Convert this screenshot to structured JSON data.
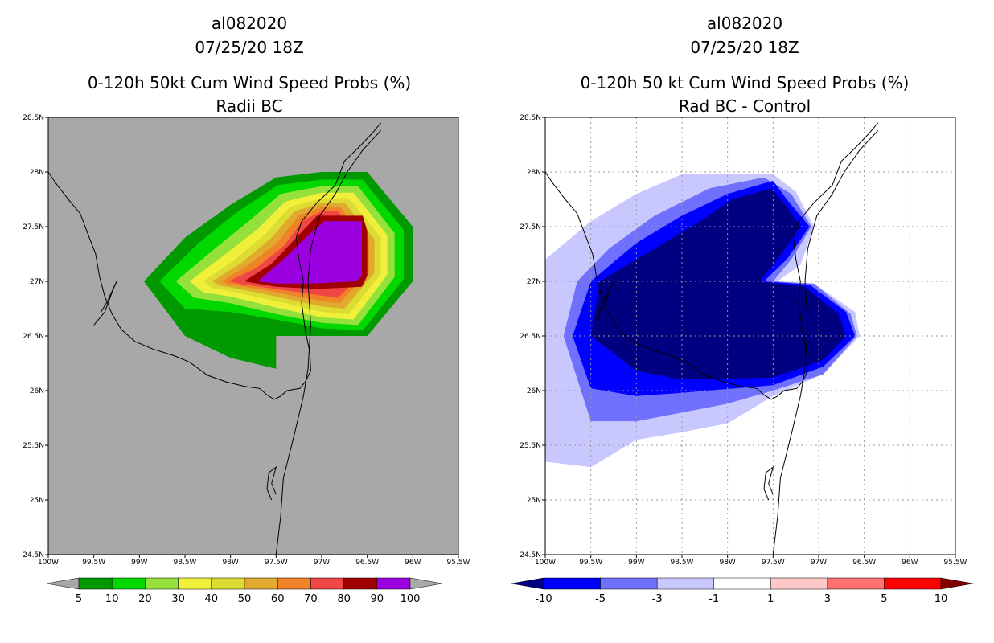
{
  "chart_data": [
    {
      "type": "heatmap",
      "id": "left",
      "title_lines": [
        "al082020",
        "07/25/20 18Z",
        "0-120h 50kt Cum Wind Speed Probs (%)",
        "Radii BC"
      ],
      "xlim": [
        -100,
        -95.5
      ],
      "ylim": [
        24.5,
        28.5
      ],
      "x_ticks": [
        {
          "v": -100,
          "label": "100W"
        },
        {
          "v": -99.5,
          "label": "99.5W"
        },
        {
          "v": -99,
          "label": "99W"
        },
        {
          "v": -98.5,
          "label": "98.5W"
        },
        {
          "v": -98,
          "label": "98W"
        },
        {
          "v": -97.5,
          "label": "97.5W"
        },
        {
          "v": -97,
          "label": "97W"
        },
        {
          "v": -96.5,
          "label": "96.5W"
        },
        {
          "v": -96,
          "label": "96W"
        },
        {
          "v": -95.5,
          "label": "95.5W"
        }
      ],
      "y_ticks": [
        {
          "v": 24.5,
          "label": "24.5N"
        },
        {
          "v": 25,
          "label": "25N"
        },
        {
          "v": 25.5,
          "label": "25.5N"
        },
        {
          "v": 26,
          "label": "26N"
        },
        {
          "v": 26.5,
          "label": "26.5N"
        },
        {
          "v": 27,
          "label": "27N"
        },
        {
          "v": 27.5,
          "label": "27.5N"
        },
        {
          "v": 28,
          "label": "28N"
        },
        {
          "v": 28.5,
          "label": "28.5N"
        }
      ],
      "background": "#a8a8a8",
      "grid": false,
      "colorbar": {
        "labels": [
          "5",
          "10",
          "20",
          "30",
          "40",
          "50",
          "60",
          "70",
          "80",
          "90",
          "100"
        ],
        "colors": [
          "#009a00",
          "#00d800",
          "#96e03c",
          "#f0f03a",
          "#dcdc32",
          "#e0aa2e",
          "#f08228",
          "#f04646",
          "#a00000",
          "#9a00e0"
        ],
        "end_color_low": "#a8a8a8",
        "end_color_high": "#a8a8a8"
      },
      "levels": [
        {
          "value": 5,
          "color": "#009a00",
          "polygon": [
            [
              -98.95,
              27
            ],
            [
              -98.5,
              27.4
            ],
            [
              -98,
              27.7
            ],
            [
              -97.5,
              27.95
            ],
            [
              -97,
              28
            ],
            [
              -96.5,
              28
            ],
            [
              -96,
              27.5
            ],
            [
              -96,
              27
            ],
            [
              -96.5,
              26.5
            ],
            [
              -97,
              26.5
            ],
            [
              -97.5,
              26.5
            ],
            [
              -97.5,
              26.2
            ],
            [
              -98,
              26.3
            ],
            [
              -98.5,
              26.5
            ]
          ]
        },
        {
          "value": 10,
          "color": "#00d800",
          "polygon": [
            [
              -98.78,
              27
            ],
            [
              -98.35,
              27.35
            ],
            [
              -97.95,
              27.62
            ],
            [
              -97.48,
              27.88
            ],
            [
              -97,
              27.93
            ],
            [
              -96.55,
              27.93
            ],
            [
              -96.1,
              27.47
            ],
            [
              -96.1,
              27.02
            ],
            [
              -96.55,
              26.55
            ],
            [
              -97,
              26.57
            ],
            [
              -97.5,
              26.65
            ],
            [
              -98,
              26.72
            ],
            [
              -98.5,
              26.75
            ]
          ]
        },
        {
          "value": 20,
          "color": "#96e03c",
          "polygon": [
            [
              -98.6,
              27
            ],
            [
              -98.2,
              27.28
            ],
            [
              -97.8,
              27.55
            ],
            [
              -97.45,
              27.8
            ],
            [
              -97,
              27.87
            ],
            [
              -96.6,
              27.87
            ],
            [
              -96.2,
              27.44
            ],
            [
              -96.2,
              27.04
            ],
            [
              -96.6,
              26.6
            ],
            [
              -97,
              26.62
            ],
            [
              -97.5,
              26.7
            ],
            [
              -98,
              26.8
            ],
            [
              -98.4,
              26.85
            ]
          ]
        },
        {
          "value": 30,
          "color": "#f0f03a",
          "polygon": [
            [
              -98.45,
              27
            ],
            [
              -98.1,
              27.22
            ],
            [
              -97.7,
              27.48
            ],
            [
              -97.4,
              27.73
            ],
            [
              -97,
              27.81
            ],
            [
              -96.65,
              27.81
            ],
            [
              -96.28,
              27.42
            ],
            [
              -96.28,
              27.06
            ],
            [
              -96.65,
              26.65
            ],
            [
              -97,
              26.67
            ],
            [
              -97.5,
              26.76
            ],
            [
              -98,
              26.86
            ],
            [
              -98.3,
              26.9
            ]
          ]
        },
        {
          "value": 40,
          "color": "#dcdc32",
          "polygon": [
            [
              -98.3,
              27
            ],
            [
              -97.98,
              27.18
            ],
            [
              -97.62,
              27.43
            ],
            [
              -97.35,
              27.68
            ],
            [
              -97,
              27.76
            ],
            [
              -96.7,
              27.76
            ],
            [
              -96.35,
              27.4
            ],
            [
              -96.35,
              27.07
            ],
            [
              -96.7,
              26.7
            ],
            [
              -97,
              26.72
            ],
            [
              -97.5,
              26.82
            ],
            [
              -97.95,
              26.9
            ],
            [
              -98.2,
              26.94
            ]
          ]
        },
        {
          "value": 50,
          "color": "#e0aa2e",
          "polygon": [
            [
              -98.2,
              27
            ],
            [
              -97.88,
              27.17
            ],
            [
              -97.55,
              27.4
            ],
            [
              -97.3,
              27.64
            ],
            [
              -97,
              27.72
            ],
            [
              -96.75,
              27.72
            ],
            [
              -96.42,
              27.38
            ],
            [
              -96.42,
              27.08
            ],
            [
              -96.75,
              26.75
            ],
            [
              -97,
              26.77
            ],
            [
              -97.5,
              26.86
            ],
            [
              -97.9,
              26.93
            ],
            [
              -98.12,
              26.96
            ]
          ]
        },
        {
          "value": 60,
          "color": "#f08228",
          "polygon": [
            [
              -98.1,
              27
            ],
            [
              -97.8,
              27.15
            ],
            [
              -97.48,
              27.36
            ],
            [
              -97.25,
              27.6
            ],
            [
              -97,
              27.68
            ],
            [
              -96.8,
              27.68
            ],
            [
              -96.48,
              27.36
            ],
            [
              -96.48,
              27.1
            ],
            [
              -96.8,
              26.8
            ],
            [
              -97,
              26.82
            ],
            [
              -97.5,
              26.9
            ],
            [
              -97.85,
              26.95
            ],
            [
              -98.05,
              26.98
            ]
          ]
        },
        {
          "value": 70,
          "color": "#f04646",
          "polygon": [
            [
              -98.02,
              27
            ],
            [
              -97.72,
              27.12
            ],
            [
              -97.42,
              27.32
            ],
            [
              -97.2,
              27.56
            ],
            [
              -97,
              27.64
            ],
            [
              -96.82,
              27.64
            ],
            [
              -96.52,
              27.34
            ],
            [
              -96.52,
              27.1
            ],
            [
              -96.82,
              26.85
            ],
            [
              -97,
              26.87
            ],
            [
              -97.5,
              26.93
            ],
            [
              -97.85,
              26.97
            ]
          ]
        },
        {
          "value": 80,
          "color": "#a00000",
          "polygon": [
            [
              -97.85,
              27
            ],
            [
              -97.55,
              27.16
            ],
            [
              -97.3,
              27.38
            ],
            [
              -97.05,
              27.6
            ],
            [
              -96.55,
              27.6
            ],
            [
              -96.5,
              27.46
            ],
            [
              -96.5,
              27.05
            ],
            [
              -96.56,
              26.95
            ],
            [
              -97.05,
              26.93
            ],
            [
              -97.5,
              26.95
            ]
          ]
        },
        {
          "value": 90,
          "color": "#9a00e0",
          "polygon": [
            [
              -97.7,
              27
            ],
            [
              -97.42,
              27.2
            ],
            [
              -97.15,
              27.42
            ],
            [
              -96.97,
              27.55
            ],
            [
              -96.56,
              27.55
            ],
            [
              -96.56,
              27.05
            ],
            [
              -96.62,
              27.0
            ],
            [
              -97.1,
              26.98
            ],
            [
              -97.5,
              26.98
            ]
          ]
        }
      ]
    },
    {
      "type": "heatmap",
      "id": "right",
      "title_lines": [
        "al082020",
        "07/25/20 18Z",
        "0-120h 50 kt Cum Wind Speed Probs (%)",
        "Rad BC - Control"
      ],
      "xlim": [
        -100,
        -95.5
      ],
      "ylim": [
        24.5,
        28.5
      ],
      "x_ticks": [
        {
          "v": -100,
          "label": "100W"
        },
        {
          "v": -99.5,
          "label": "99.5W"
        },
        {
          "v": -99,
          "label": "99W"
        },
        {
          "v": -98.5,
          "label": "98.5W"
        },
        {
          "v": -98,
          "label": "98W"
        },
        {
          "v": -97.5,
          "label": "97.5W"
        },
        {
          "v": -97,
          "label": "97W"
        },
        {
          "v": -96.5,
          "label": "96.5W"
        },
        {
          "v": -96,
          "label": "96W"
        },
        {
          "v": -95.5,
          "label": "95.5W"
        }
      ],
      "y_ticks": [
        {
          "v": 24.5,
          "label": "24.5N"
        },
        {
          "v": 25,
          "label": "25N"
        },
        {
          "v": 25.5,
          "label": "25.5N"
        },
        {
          "v": 26,
          "label": "26N"
        },
        {
          "v": 26.5,
          "label": "26.5N"
        },
        {
          "v": 27,
          "label": "27N"
        },
        {
          "v": 27.5,
          "label": "27.5N"
        },
        {
          "v": 28,
          "label": "28N"
        },
        {
          "v": 28.5,
          "label": "28.5N"
        }
      ],
      "background": "#ffffff",
      "grid": true,
      "colorbar": {
        "labels": [
          "-10",
          "-5",
          "-3",
          "-1",
          "1",
          "3",
          "5",
          "10"
        ],
        "colors": [
          "#0000ff",
          "#7070ff",
          "#c8c8ff",
          "#ffffff",
          "#ffc8c8",
          "#ff7070",
          "#ff0000"
        ],
        "end_color_low": "#000080",
        "end_color_high": "#800000"
      },
      "levels": [
        {
          "value": -1,
          "color": "#c8c8ff",
          "polygon": [
            [
              -100,
              27.2
            ],
            [
              -99.5,
              27.55
            ],
            [
              -99,
              27.8
            ],
            [
              -98.5,
              27.98
            ],
            [
              -98,
              27.98
            ],
            [
              -97.5,
              27.98
            ],
            [
              -97.25,
              27.82
            ],
            [
              -97.05,
              27.5
            ],
            [
              -97.2,
              27.15
            ],
            [
              -97.45,
              27.0
            ],
            [
              -97,
              26.95
            ],
            [
              -96.6,
              26.72
            ],
            [
              -96.55,
              26.5
            ],
            [
              -96.95,
              26.15
            ],
            [
              -97.5,
              25.95
            ],
            [
              -98,
              25.7
            ],
            [
              -98.5,
              25.62
            ],
            [
              -99,
              25.55
            ],
            [
              -99.5,
              25.3
            ],
            [
              -100,
              25.35
            ]
          ]
        },
        {
          "value": -3,
          "color": "#7070ff",
          "polygon": [
            [
              -99.8,
              26.5
            ],
            [
              -99.65,
              27.0
            ],
            [
              -99.3,
              27.3
            ],
            [
              -98.8,
              27.6
            ],
            [
              -98.2,
              27.85
            ],
            [
              -97.6,
              27.95
            ],
            [
              -97.3,
              27.8
            ],
            [
              -97.08,
              27.5
            ],
            [
              -97.3,
              27.2
            ],
            [
              -97.5,
              27.0
            ],
            [
              -97.05,
              26.98
            ],
            [
              -96.65,
              26.7
            ],
            [
              -96.58,
              26.5
            ],
            [
              -96.95,
              26.15
            ],
            [
              -97.5,
              26.0
            ],
            [
              -98,
              25.88
            ],
            [
              -98.5,
              25.8
            ],
            [
              -99,
              25.72
            ],
            [
              -99.5,
              25.72
            ]
          ]
        },
        {
          "value": -5,
          "color": "#0000ff",
          "polygon": [
            [
              -99.7,
              26.5
            ],
            [
              -99.5,
              27.0
            ],
            [
              -99.0,
              27.35
            ],
            [
              -98.5,
              27.6
            ],
            [
              -98.0,
              27.8
            ],
            [
              -97.5,
              27.92
            ],
            [
              -97.35,
              27.75
            ],
            [
              -97.1,
              27.5
            ],
            [
              -97.35,
              27.2
            ],
            [
              -97.6,
              27.0
            ],
            [
              -97.1,
              26.97
            ],
            [
              -96.7,
              26.72
            ],
            [
              -96.6,
              26.5
            ],
            [
              -96.95,
              26.22
            ],
            [
              -97.5,
              26.05
            ],
            [
              -98.5,
              25.98
            ],
            [
              -99,
              25.95
            ],
            [
              -99.5,
              26.02
            ]
          ]
        },
        {
          "value": -10,
          "color": "#000080",
          "polygon": [
            [
              -99.5,
              26.5
            ],
            [
              -99.4,
              27.0
            ],
            [
              -98.8,
              27.3
            ],
            [
              -98.3,
              27.55
            ],
            [
              -97.95,
              27.75
            ],
            [
              -97.52,
              27.85
            ],
            [
              -97.38,
              27.72
            ],
            [
              -97.2,
              27.5
            ],
            [
              -97.45,
              27.2
            ],
            [
              -97.65,
              27.0
            ],
            [
              -97.15,
              26.95
            ],
            [
              -96.78,
              26.7
            ],
            [
              -96.7,
              26.5
            ],
            [
              -96.95,
              26.28
            ],
            [
              -97.5,
              26.12
            ],
            [
              -98.5,
              26.1
            ],
            [
              -99,
              26.18
            ]
          ]
        }
      ]
    }
  ]
}
